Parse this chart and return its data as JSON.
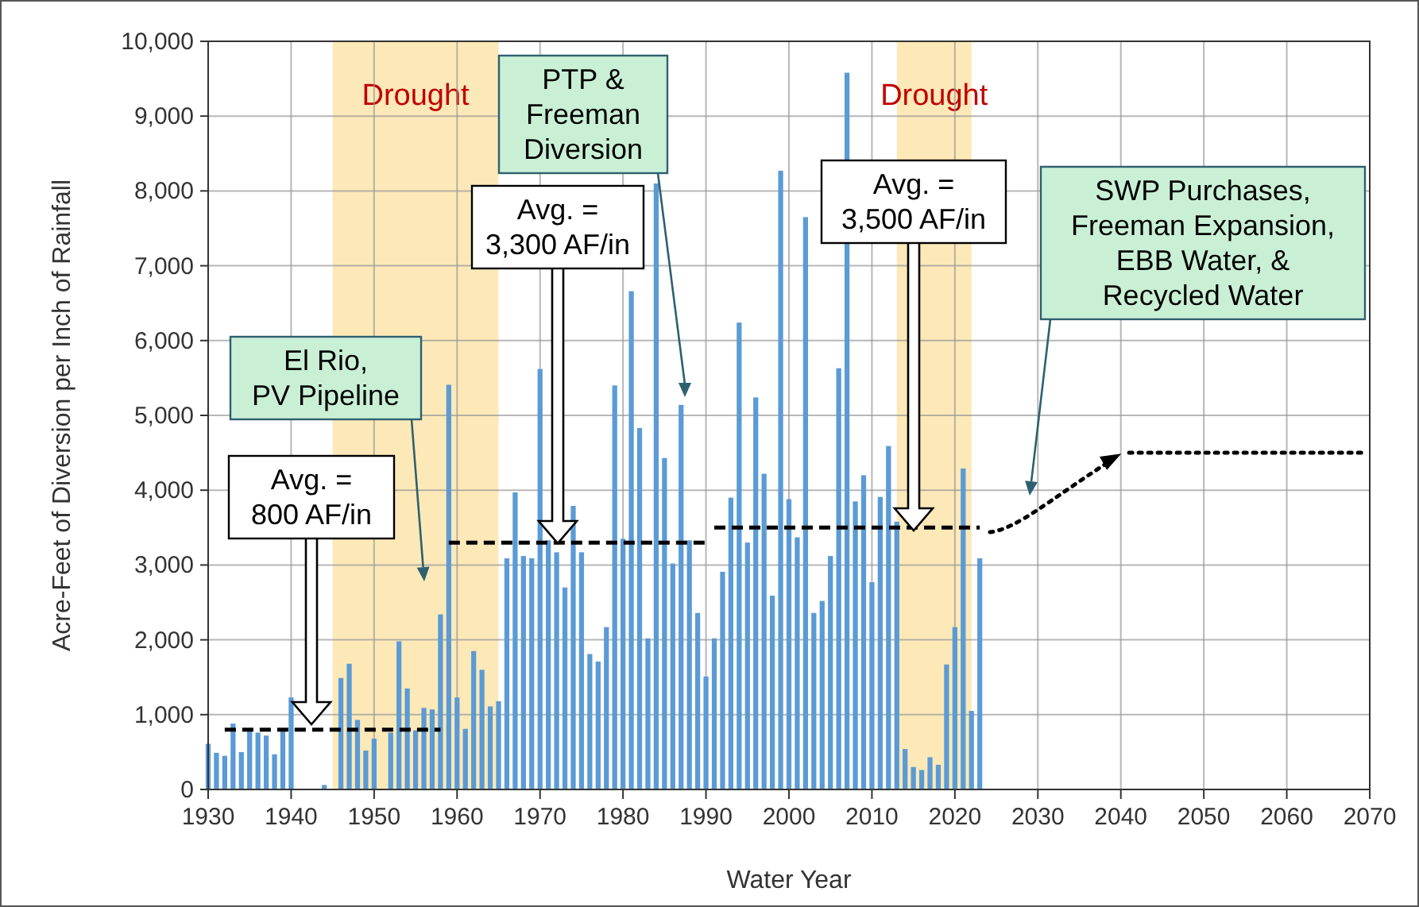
{
  "chart_data": {
    "type": "bar",
    "xlabel": "Water Year",
    "ylabel": "Acre-Feet of Diversion per Inch of Rainfall",
    "xlim": [
      1930,
      2070
    ],
    "xticks": [
      1930,
      1940,
      1950,
      1960,
      1970,
      1980,
      1990,
      2000,
      2010,
      2020,
      2030,
      2040,
      2050,
      2060,
      2070
    ],
    "ylim": [
      0,
      10000
    ],
    "yticks": [
      0,
      {
        "value": 1000,
        "label": "1,000"
      },
      {
        "value": 2000,
        "label": "2,000"
      },
      {
        "value": 3000,
        "label": "3,000"
      },
      {
        "value": 4000,
        "label": "4,000"
      },
      {
        "value": 5000,
        "label": "5,000"
      },
      {
        "value": 6000,
        "label": "6,000"
      },
      {
        "value": 7000,
        "label": "7,000"
      },
      {
        "value": 8000,
        "label": "8,000"
      },
      {
        "value": 9000,
        "label": "9,000"
      },
      {
        "value": 10000,
        "label": "10,000"
      }
    ],
    "grid": true,
    "series": [
      {
        "color": "#5b9bd5",
        "x": [
          1930,
          1931,
          1932,
          1933,
          1934,
          1935,
          1936,
          1937,
          1938,
          1939,
          1940,
          1941,
          1942,
          1943,
          1944,
          1945,
          1946,
          1947,
          1948,
          1949,
          1950,
          1951,
          1952,
          1953,
          1954,
          1955,
          1956,
          1957,
          1958,
          1959,
          1960,
          1961,
          1962,
          1963,
          1964,
          1965,
          1966,
          1967,
          1968,
          1969,
          1970,
          1971,
          1972,
          1973,
          1974,
          1975,
          1976,
          1977,
          1978,
          1979,
          1980,
          1981,
          1982,
          1983,
          1984,
          1985,
          1986,
          1987,
          1988,
          1989,
          1990,
          1991,
          1992,
          1993,
          1994,
          1995,
          1996,
          1997,
          1998,
          1999,
          2000,
          2001,
          2002,
          2003,
          2004,
          2005,
          2006,
          2007,
          2008,
          2009,
          2010,
          2011,
          2012,
          2013,
          2014,
          2015,
          2016,
          2017,
          2018,
          2019,
          2020,
          2021,
          2022,
          2023
        ],
        "values": [
          610,
          490,
          450,
          880,
          500,
          820,
          760,
          720,
          470,
          820,
          1230,
          0,
          0,
          0,
          60,
          0,
          1490,
          1680,
          930,
          520,
          680,
          0,
          760,
          1980,
          1350,
          790,
          1090,
          1070,
          2340,
          5410,
          1230,
          810,
          1850,
          1600,
          1110,
          1180,
          3090,
          3970,
          3120,
          3090,
          5620,
          3330,
          3170,
          2700,
          3790,
          3170,
          1810,
          1710,
          2170,
          5400,
          3350,
          6660,
          4830,
          2020,
          8100,
          4430,
          3020,
          5140,
          3330,
          2360,
          1510,
          2020,
          2910,
          3900,
          6240,
          3300,
          5240,
          4220,
          2590,
          8270,
          3880,
          3370,
          7650,
          2360,
          2520,
          3120,
          5630,
          9580,
          3850,
          4200,
          2770,
          3910,
          4590,
          3580,
          540,
          300,
          260,
          430,
          330,
          1670,
          2170,
          4290,
          1050,
          3090
        ]
      },
      {
        "type": "line",
        "color": "#000000",
        "line_style": "dashed",
        "x": [
          1932,
          1958
        ],
        "values": [
          800,
          800
        ]
      },
      {
        "type": "line",
        "color": "#000000",
        "line_style": "dashed",
        "x": [
          1959,
          1990
        ],
        "values": [
          3300,
          3300
        ]
      },
      {
        "type": "line",
        "color": "#000000",
        "line_style": "dashed",
        "x": [
          1991,
          2023
        ],
        "values": [
          3500,
          3500
        ]
      },
      {
        "type": "line",
        "color": "#000000",
        "line_style": "dotted",
        "x": [
          2041,
          2069
        ],
        "values": [
          4500,
          4500
        ]
      }
    ],
    "bands": [
      {
        "axis": "x",
        "from": 1945,
        "to": 1965,
        "label": "Drought",
        "color": "#fde9b8"
      },
      {
        "axis": "x",
        "from": 2013,
        "to": 2022,
        "label": "Drought",
        "color": "#fde9b8"
      }
    ],
    "annotations": [
      "El Rio,\nPV Pipeline",
      "Avg. =\n800 AF/in",
      "PTP &\nFreeman\nDiversion",
      "Avg. =\n3,300 AF/in",
      "Avg. =\n3,500 AF/in",
      "SWP Purchases,\nFreeman Expansion,\nEBB Water, &\nRecycled Water"
    ]
  }
}
